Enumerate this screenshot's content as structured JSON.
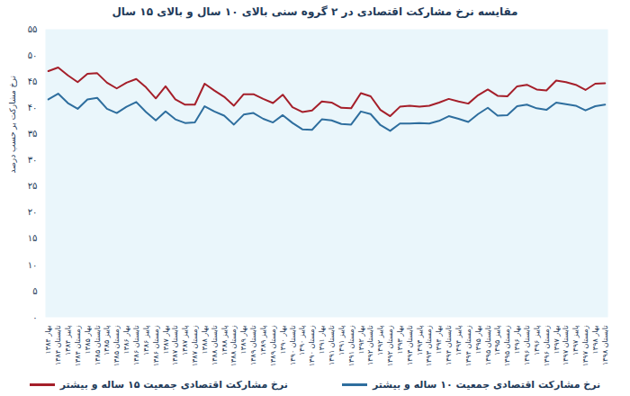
{
  "chart_data": {
    "type": "line",
    "title": "مقایسه نرخ مشارکت اقتصادی در ۲ گروه سنی بالای ۱۰ سال و بالای ۱۵ سال",
    "y_label": "نرخ مشارکت بر حسب درصد",
    "categories": [
      "بهار ۱۳۸۴",
      "تابستان ۱۳۸۴",
      "پاییز ۱۳۸۴",
      "زمستان ۱۳۸۴",
      "بهار ۱۳۸۵",
      "تابستان ۱۳۸۵",
      "پاییز ۱۳۸۵",
      "زمستان ۱۳۸۵",
      "بهار ۱۳۸۶",
      "تابستان ۱۳۸۶",
      "پاییز ۱۳۸۶",
      "زمستان ۱۳۸۶",
      "بهار ۱۳۸۷",
      "تابستان ۱۳۸۷",
      "پاییز ۱۳۸۷",
      "زمستان ۱۳۸۷",
      "بهار ۱۳۸۸",
      "تابستان ۱۳۸۸",
      "پاییز ۱۳۸۸",
      "زمستان ۱۳۸۸",
      "بهار ۱۳۸۹",
      "تابستان ۱۳۸۹",
      "پاییز ۱۳۸۹",
      "زمستان ۱۳۸۹",
      "بهار ۱۳۹۰",
      "تابستان ۱۳۹۰",
      "پاییز ۱۳۹۰",
      "زمستان ۱۳۹۰",
      "بهار ۱۳۹۱",
      "تابستان ۱۳۹۱",
      "پاییز ۱۳۹۱",
      "زمستان ۱۳۹۱",
      "بهار ۱۳۹۲",
      "تابستان ۱۳۹۲",
      "پاییز ۱۳۹۲",
      "زمستان ۱۳۹۲",
      "بهار ۱۳۹۳",
      "تابستان ۱۳۹۳",
      "پاییز ۱۳۹۳",
      "زمستان ۱۳۹۳",
      "بهار ۱۳۹۴",
      "تابستان ۱۳۹۴",
      "پاییز ۱۳۹۴",
      "زمستان ۱۳۹۴",
      "بهار ۱۳۹۵",
      "تابستان ۱۳۹۵",
      "پاییز ۱۳۹۵",
      "زمستان ۱۳۹۵",
      "بهار ۱۳۹۶",
      "تابستان ۱۳۹۶",
      "پاییز ۱۳۹۶",
      "زمستان ۱۳۹۶",
      "بهار ۱۳۹۷",
      "تابستان ۱۳۹۷",
      "پاییز ۱۳۹۷",
      "زمستان ۱۳۹۷",
      "بهار ۱۳۹۸",
      "تابستان ۱۳۹۸"
    ],
    "series": [
      {
        "name": "نرخ مشارکت اقتصادی جمعیت ۱۰ ساله و بیشتر",
        "color": "#2e6e9e",
        "values": [
          41.6,
          42.7,
          40.9,
          39.8,
          41.6,
          41.9,
          39.8,
          39.0,
          40.2,
          41.1,
          39.2,
          37.6,
          39.3,
          37.8,
          37.1,
          37.2,
          40.3,
          39.3,
          38.5,
          36.8,
          38.7,
          39.0,
          37.9,
          37.2,
          38.6,
          37.1,
          35.9,
          35.8,
          37.8,
          37.6,
          36.9,
          36.8,
          39.3,
          38.8,
          36.7,
          35.6,
          37.0,
          37.0,
          37.1,
          37.0,
          37.5,
          38.4,
          37.9,
          37.3,
          38.8,
          40.0,
          38.5,
          38.6,
          40.3,
          40.6,
          39.9,
          39.6,
          41.0,
          40.7,
          40.4,
          39.5,
          40.3,
          40.6
        ]
      },
      {
        "name": "نرخ مشارکت اقتصادی جمعیت ۱۵ ساله و بیشتر",
        "color": "#a51f2a",
        "values": [
          47.0,
          47.7,
          46.2,
          44.9,
          46.5,
          46.6,
          44.8,
          43.7,
          44.8,
          45.5,
          43.9,
          41.8,
          44.1,
          41.6,
          40.6,
          40.6,
          44.6,
          43.3,
          42.1,
          40.4,
          42.6,
          42.6,
          41.7,
          40.9,
          42.5,
          40.1,
          39.2,
          39.5,
          41.2,
          41.0,
          40.0,
          39.9,
          42.8,
          42.2,
          39.6,
          38.4,
          40.2,
          40.4,
          40.2,
          40.4,
          41.0,
          41.7,
          41.2,
          40.8,
          42.4,
          43.5,
          42.3,
          42.2,
          44.1,
          44.4,
          43.5,
          43.3,
          45.2,
          44.9,
          44.4,
          43.4,
          44.6,
          44.7
        ]
      }
    ],
    "ylim": [
      0,
      55
    ],
    "yticks": [
      {
        "value": 0,
        "label": "۰"
      },
      {
        "value": 5,
        "label": "۵"
      },
      {
        "value": 10,
        "label": "۱۰"
      },
      {
        "value": 15,
        "label": "۱۵"
      },
      {
        "value": 20,
        "label": "۲۰"
      },
      {
        "value": 25,
        "label": "۲۵"
      },
      {
        "value": 30,
        "label": "۳۰"
      },
      {
        "value": 35,
        "label": "۳۵"
      },
      {
        "value": 40,
        "label": "۴۰"
      },
      {
        "value": 45,
        "label": "۴۵"
      },
      {
        "value": 50,
        "label": "۵۰"
      },
      {
        "value": 55,
        "label": "۵۵"
      }
    ],
    "grid": false,
    "legend": "bottom"
  }
}
